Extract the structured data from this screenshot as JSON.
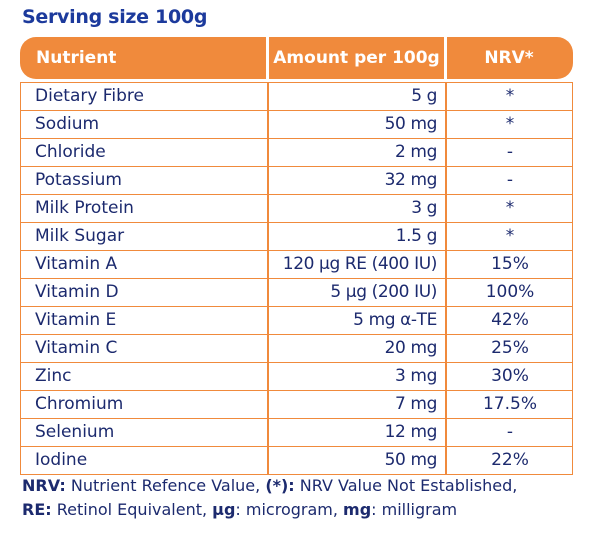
{
  "serving_size": "Serving size 100g",
  "headers": {
    "nutrient": "Nutrient",
    "amount": "Amount per 100g",
    "nrv": "NRV*"
  },
  "rows": [
    {
      "name": "Dietary Fibre",
      "amount": "5 g",
      "nrv": "*"
    },
    {
      "name": "Sodium",
      "amount": "50 mg",
      "nrv": "*"
    },
    {
      "name": "Chloride",
      "amount": "2 mg",
      "nrv": "-"
    },
    {
      "name": "Potassium",
      "amount": "32 mg",
      "nrv": "-"
    },
    {
      "name": "Milk Protein",
      "amount": "3 g",
      "nrv": "*"
    },
    {
      "name": "Milk Sugar",
      "amount": "1.5 g",
      "nrv": "*"
    },
    {
      "name": "Vitamin A",
      "amount": "120 µg RE (400 IU)",
      "nrv": "15%"
    },
    {
      "name": "Vitamin D",
      "amount": "5 µg (200 IU)",
      "nrv": "100%"
    },
    {
      "name": "Vitamin E",
      "amount": "5 mg α-TE",
      "nrv": "42%"
    },
    {
      "name": "Vitamin C",
      "amount": "20 mg",
      "nrv": "25%"
    },
    {
      "name": "Zinc",
      "amount": "3 mg",
      "nrv": "30%"
    },
    {
      "name": "Chromium",
      "amount": "7 mg",
      "nrv": "17.5%"
    },
    {
      "name": "Selenium",
      "amount": "12 mg",
      "nrv": "-"
    },
    {
      "name": "Iodine",
      "amount": "50 mg",
      "nrv": "22%"
    }
  ],
  "footnote": {
    "nrv_key": "NRV:",
    "nrv_text": " Nutrient Refence Value, ",
    "star_key": "(*):",
    "star_text": " NRV Value Not Established,",
    "re_key": "RE:",
    "re_text": " Retinol Equivalent, ",
    "ug_key": "µg",
    "ug_text": ": microgram, ",
    "mg_key": "mg",
    "mg_text": ": milligram"
  },
  "colors": {
    "accent": "#f08a3c",
    "text": "#1c2a6e",
    "title": "#1c3a9c"
  }
}
